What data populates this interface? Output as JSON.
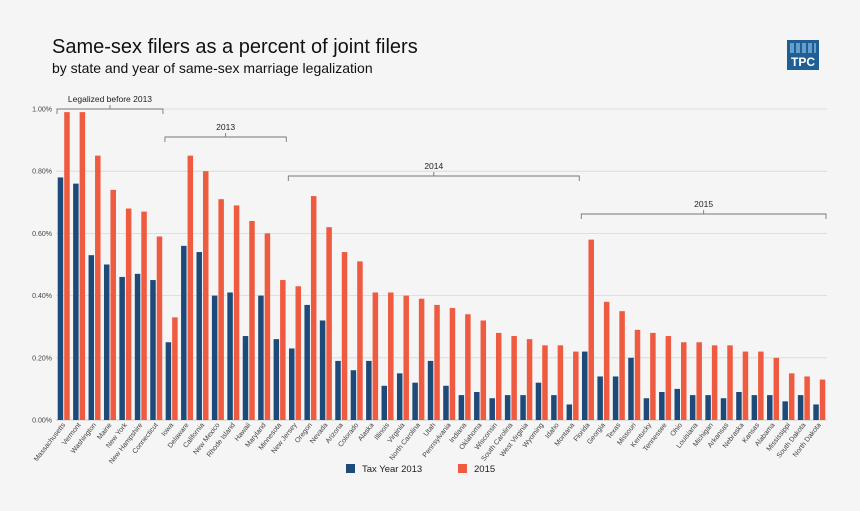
{
  "title": "Same-sex filers as a percent of joint filers",
  "subtitle": "by state and year of same-sex marriage legalization",
  "logo": {
    "text": "TPC",
    "color": "#1f5f93"
  },
  "chart_data": {
    "type": "bar",
    "ylim": [
      0,
      1.0
    ],
    "yticks": [
      "0.00%",
      "0.20%",
      "0.40%",
      "0.60%",
      "0.80%",
      "1.00%"
    ],
    "ytick_values": [
      0,
      0.2,
      0.4,
      0.6,
      0.8,
      1.0
    ],
    "grid": true,
    "legend_position": "bottom",
    "categories": [
      "Massachusetts",
      "Vermont",
      "Washington",
      "Maine",
      "New York",
      "New Hampshire",
      "Connecticut",
      "Iowa",
      "Delaware",
      "California",
      "New Mexico",
      "Rhode Island",
      "Hawaii",
      "Maryland",
      "Minnesota",
      "New Jersey",
      "Oregon",
      "Nevada",
      "Arizona",
      "Colorado",
      "Alaska",
      "Illinois",
      "Virginia",
      "North Carolina",
      "Utah",
      "Pennsylvania",
      "Indiana",
      "Oklahoma",
      "Wisconsin",
      "South Carolina",
      "West Virginia",
      "Wyoming",
      "Idaho",
      "Montana",
      "Florida",
      "Georgia",
      "Texas",
      "Missouri",
      "Kentucky",
      "Tennessee",
      "Ohio",
      "Louisiana",
      "Michigan",
      "Arkansas",
      "Nebraska",
      "Kansas",
      "Alabama",
      "Mississippi",
      "South Dakota",
      "North Dakota"
    ],
    "series": [
      {
        "name": "Tax Year 2013",
        "color": "#1e4a7a",
        "values": [
          0.78,
          0.76,
          0.53,
          0.5,
          0.46,
          0.47,
          0.45,
          0.25,
          0.56,
          0.54,
          0.4,
          0.41,
          0.27,
          0.4,
          0.26,
          0.23,
          0.37,
          0.32,
          0.19,
          0.16,
          0.19,
          0.11,
          0.15,
          0.12,
          0.19,
          0.11,
          0.08,
          0.09,
          0.07,
          0.08,
          0.08,
          0.12,
          0.08,
          0.05,
          0.22,
          0.14,
          0.14,
          0.2,
          0.07,
          0.09,
          0.1,
          0.08,
          0.08,
          0.07,
          0.09,
          0.08,
          0.08,
          0.06,
          0.08,
          0.05
        ]
      },
      {
        "name": "2015",
        "color": "#ef5b40",
        "values": [
          0.99,
          0.99,
          0.85,
          0.74,
          0.68,
          0.67,
          0.59,
          0.33,
          0.85,
          0.8,
          0.71,
          0.69,
          0.64,
          0.6,
          0.45,
          0.43,
          0.72,
          0.62,
          0.54,
          0.51,
          0.41,
          0.41,
          0.4,
          0.39,
          0.37,
          0.36,
          0.34,
          0.32,
          0.28,
          0.27,
          0.26,
          0.24,
          0.24,
          0.22,
          0.58,
          0.38,
          0.35,
          0.29,
          0.28,
          0.27,
          0.25,
          0.25,
          0.24,
          0.24,
          0.22,
          0.22,
          0.2,
          0.15,
          0.14,
          0.13
        ]
      }
    ],
    "groups": [
      {
        "label": "Legalized before 2013",
        "start": 0,
        "end": 6
      },
      {
        "label": "2013",
        "start": 7,
        "end": 14
      },
      {
        "label": "2014",
        "start": 15,
        "end": 33
      },
      {
        "label": "2015",
        "start": 34,
        "end": 49
      }
    ]
  }
}
